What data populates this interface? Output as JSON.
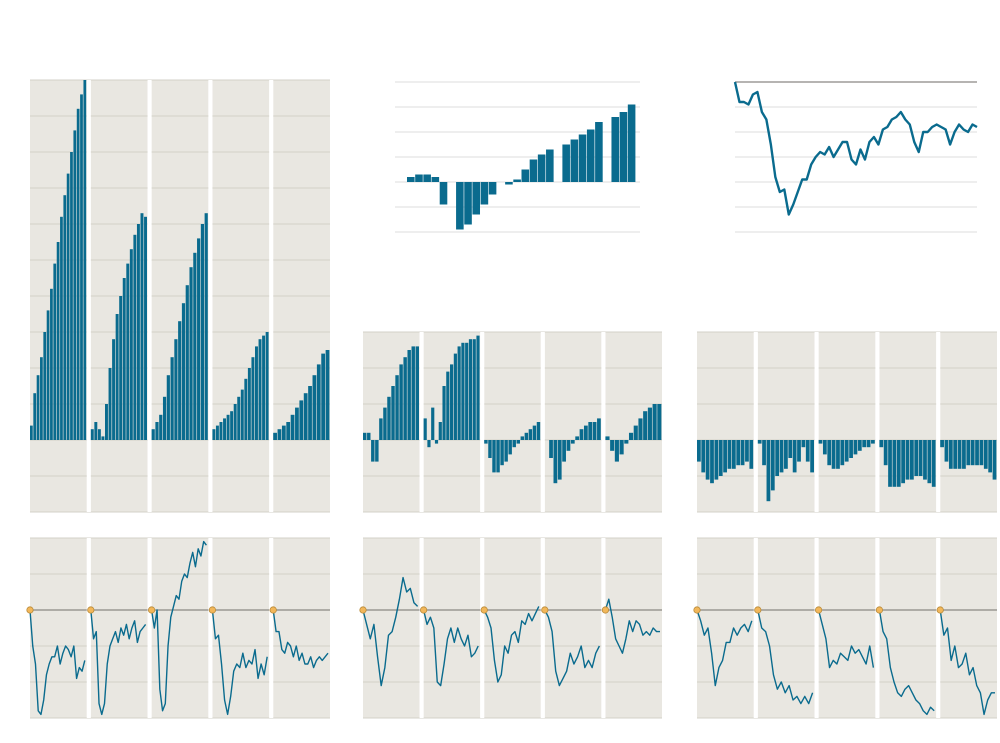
{
  "chart_data": [
    {
      "type": "grouped-bars",
      "color": "#0a6b8e",
      "ylim": [
        -2,
        10
      ],
      "yticks": [
        -2,
        -1,
        0,
        1,
        2,
        3,
        4,
        5,
        6,
        7,
        8,
        9,
        10
      ],
      "groups": [
        {
          "values": [
            0.4,
            1.3,
            1.8,
            2.3,
            3,
            3.6,
            4.2,
            4.9,
            5.5,
            6.2,
            6.8,
            7.4,
            8,
            8.6,
            9.2,
            9.6,
            10
          ]
        },
        {
          "values": [
            0.3,
            0.5,
            0.3,
            0.1,
            1.0,
            2.0,
            2.8,
            3.5,
            4.0,
            4.5,
            4.9,
            5.3,
            5.7,
            6.0,
            6.3,
            6.2
          ]
        },
        {
          "values": [
            0.3,
            0.5,
            0.7,
            1.2,
            1.8,
            2.3,
            2.8,
            3.3,
            3.8,
            4.3,
            4.8,
            5.2,
            5.6,
            6.0,
            6.3
          ]
        },
        {
          "values": [
            0.3,
            0.4,
            0.5,
            0.6,
            0.7,
            0.8,
            1.0,
            1.2,
            1.4,
            1.7,
            2.0,
            2.3,
            2.6,
            2.8,
            2.9,
            3.0
          ]
        },
        {
          "values": [
            0.2,
            0.3,
            0.4,
            0.5,
            0.7,
            0.9,
            1.1,
            1.3,
            1.5,
            1.8,
            2.1,
            2.4,
            2.5
          ]
        }
      ]
    },
    {
      "type": "bar",
      "color": "#0a6b8e",
      "ylim": [
        -2,
        4
      ],
      "yticks": [
        -2,
        -1,
        0,
        1,
        2,
        3,
        4
      ],
      "values": [
        0.2,
        0.3,
        0.3,
        0.2,
        -0.9,
        0,
        -1.9,
        -1.7,
        -1.3,
        -0.9,
        -0.5,
        0,
        -0.1,
        0.1,
        0.5,
        0.9,
        1.1,
        1.3,
        0,
        1.5,
        1.7,
        1.9,
        2.1,
        2.4,
        0,
        2.6,
        2.8,
        3.1
      ]
    },
    {
      "type": "line",
      "color": "#0a6b8e",
      "ylim": [
        -6,
        0
      ],
      "yticks": [
        -6,
        -5,
        -4,
        -3,
        -2,
        -1,
        0
      ],
      "values": [
        0,
        -0.8,
        -0.8,
        -0.9,
        -0.5,
        -0.4,
        -1.2,
        -1.5,
        -2.5,
        -3.8,
        -4.4,
        -4.3,
        -5.3,
        -4.9,
        -4.4,
        -3.9,
        -3.9,
        -3.3,
        -3.0,
        -2.8,
        -2.9,
        -2.6,
        -3.0,
        -2.7,
        -2.4,
        -2.4,
        -3.1,
        -3.3,
        -2.7,
        -3.1,
        -2.4,
        -2.2,
        -2.5,
        -1.9,
        -1.8,
        -1.5,
        -1.4,
        -1.2,
        -1.5,
        -1.7,
        -2.4,
        -2.8,
        -2.0,
        -2.0,
        -1.8,
        -1.7,
        -1.8,
        -1.9,
        -2.5,
        -2.0,
        -1.7,
        -1.9,
        -2.0,
        -1.7,
        -1.8
      ]
    },
    {
      "type": "grouped-bars",
      "color": "#0a6b8e",
      "ylim": [
        -2,
        3
      ],
      "yticks": [
        -2,
        -1,
        0,
        1,
        2,
        3
      ],
      "groups": [
        {
          "values": [
            0.2,
            0.2,
            -0.6,
            -0.6,
            0.6,
            0.9,
            1.2,
            1.5,
            1.8,
            2.1,
            2.3,
            2.5,
            2.6,
            2.6
          ]
        },
        {
          "values": [
            0.6,
            -0.2,
            0.9,
            -0.1,
            0.5,
            1.5,
            1.9,
            2.1,
            2.4,
            2.6,
            2.7,
            2.7,
            2.8,
            2.8,
            2.9
          ]
        },
        {
          "values": [
            -0.1,
            -0.5,
            -0.9,
            -0.9,
            -0.7,
            -0.6,
            -0.4,
            -0.2,
            -0.1,
            0.1,
            0.2,
            0.3,
            0.4,
            0.5
          ]
        },
        {
          "values": [
            0,
            -0.5,
            -1.2,
            -1.1,
            -0.6,
            -0.3,
            -0.1,
            0.1,
            0.3,
            0.4,
            0.5,
            0.5,
            0.6
          ]
        },
        {
          "values": [
            0.1,
            -0.3,
            -0.6,
            -0.4,
            -0.1,
            0.2,
            0.4,
            0.6,
            0.8,
            0.9,
            1.0,
            1.0
          ]
        }
      ]
    },
    {
      "type": "grouped-bars",
      "color": "#0a6b8e",
      "ylim": [
        -2,
        3
      ],
      "yticks": [
        -2,
        -1,
        0,
        1,
        2,
        3
      ],
      "groups": [
        {
          "values": [
            -0.6,
            -0.9,
            -1.1,
            -1.2,
            -1.1,
            -1.0,
            -0.9,
            -0.8,
            -0.8,
            -0.7,
            -0.7,
            -0.6,
            -0.8
          ]
        },
        {
          "values": [
            -0.1,
            -0.7,
            -1.7,
            -1.4,
            -1.0,
            -0.9,
            -0.8,
            -0.5,
            -0.9,
            -0.6,
            -0.2,
            -0.6,
            -0.9
          ]
        },
        {
          "values": [
            -0.1,
            -0.4,
            -0.7,
            -0.8,
            -0.8,
            -0.7,
            -0.6,
            -0.5,
            -0.4,
            -0.3,
            -0.2,
            -0.2,
            -0.1
          ]
        },
        {
          "values": [
            -0.2,
            -0.7,
            -1.3,
            -1.3,
            -1.3,
            -1.2,
            -1.1,
            -1.1,
            -1.0,
            -1.0,
            -1.1,
            -1.2,
            -1.3
          ]
        },
        {
          "values": [
            -0.2,
            -0.6,
            -0.8,
            -0.8,
            -0.8,
            -0.8,
            -0.7,
            -0.7,
            -0.7,
            -0.7,
            -0.8,
            -0.9,
            -1.1
          ]
        }
      ]
    },
    {
      "type": "grouped-lines",
      "color": "#0a6b8e",
      "ylim": [
        -3,
        2
      ],
      "yticks": [
        -3,
        -2,
        -1,
        0,
        1,
        2
      ],
      "groups": [
        {
          "values": [
            0,
            -1,
            -1.5,
            -2.8,
            -2.9,
            -2.5,
            -1.8,
            -1.5,
            -1.3,
            -1.3,
            -1,
            -1.5,
            -1.2,
            -1.0,
            -1.1,
            -1.3,
            -1.0,
            -1.9,
            -1.6,
            -1.7,
            -1.4
          ]
        },
        {
          "values": [
            0,
            -0.8,
            -0.6,
            -2.6,
            -2.9,
            -2.6,
            -1.5,
            -1.0,
            -0.8,
            -0.6,
            -0.9,
            -0.5,
            -0.7,
            -0.4,
            -0.8,
            -0.5,
            -0.3,
            -0.9,
            -0.6,
            -0.5,
            -0.4
          ]
        },
        {
          "values": [
            0,
            -0.5,
            0,
            -2.2,
            -2.8,
            -2.6,
            -1.0,
            -0.2,
            0.1,
            0.4,
            0.3,
            0.8,
            1.0,
            0.9,
            1.3,
            1.6,
            1.2,
            1.7,
            1.5,
            1.9,
            1.8
          ]
        },
        {
          "values": [
            0,
            -0.8,
            -0.7,
            -1.5,
            -2.5,
            -2.9,
            -2.4,
            -1.7,
            -1.5,
            -1.6,
            -1.2,
            -1.6,
            -1.4,
            -1.5,
            -1.1,
            -1.9,
            -1.5,
            -1.8,
            -1.3
          ]
        },
        {
          "values": [
            0,
            -0.6,
            -0.6,
            -1.1,
            -1.2,
            -0.9,
            -1.0,
            -1.3,
            -1.0,
            -1.4,
            -1.2,
            -1.5,
            -1.5,
            -1.3,
            -1.6,
            -1.4,
            -1.3,
            -1.4,
            -1.3,
            -1.2
          ]
        }
      ]
    },
    {
      "type": "grouped-lines",
      "color": "#0a6b8e",
      "ylim": [
        -3,
        2
      ],
      "yticks": [
        -3,
        -2,
        -1,
        0,
        1,
        2
      ],
      "groups": [
        {
          "values": [
            0,
            -0.4,
            -0.8,
            -0.4,
            -1.3,
            -2.1,
            -1.6,
            -0.7,
            -0.6,
            -0.2,
            0.3,
            0.9,
            0.5,
            0.6,
            0.2,
            0.1
          ]
        },
        {
          "values": [
            0,
            -0.4,
            -0.2,
            -0.5,
            -2.0,
            -2.1,
            -1.5,
            -0.8,
            -0.5,
            -0.9,
            -0.5,
            -0.8,
            -1.0,
            -0.7,
            -1.3,
            -1.2,
            -1.0
          ]
        },
        {
          "values": [
            0,
            -0.2,
            -0.5,
            -1.4,
            -2.0,
            -1.8,
            -1.0,
            -1.2,
            -0.7,
            -0.6,
            -0.9,
            -0.3,
            -0.4,
            -0.1,
            -0.3,
            -0.1,
            0.1
          ]
        },
        {
          "values": [
            0,
            -0.2,
            -0.6,
            -1.7,
            -2.1,
            -1.9,
            -1.7,
            -1.2,
            -1.5,
            -1.3,
            -1.0,
            -1.6,
            -1.4,
            -1.6,
            -1.2,
            -1.0
          ]
        },
        {
          "values": [
            0,
            0.3,
            -0.2,
            -0.8,
            -1.0,
            -1.2,
            -0.8,
            -0.3,
            -0.6,
            -0.3,
            -0.4,
            -0.7,
            -0.6,
            -0.7,
            -0.5,
            -0.6,
            -0.6
          ]
        }
      ]
    },
    {
      "type": "grouped-lines",
      "color": "#0a6b8e",
      "ylim": [
        -3,
        2
      ],
      "yticks": [
        -3,
        -2,
        -1,
        0,
        1,
        2
      ],
      "groups": [
        {
          "values": [
            0,
            -0.3,
            -0.7,
            -0.5,
            -1.2,
            -2.1,
            -1.6,
            -1.4,
            -0.9,
            -0.9,
            -0.5,
            -0.7,
            -0.5,
            -0.4,
            -0.6,
            -0.3
          ]
        },
        {
          "values": [
            0,
            -0.5,
            -0.6,
            -1.0,
            -1.8,
            -2.2,
            -2.0,
            -2.3,
            -2.1,
            -2.5,
            -2.4,
            -2.6,
            -2.4,
            -2.6,
            -2.3
          ]
        },
        {
          "values": [
            0,
            -0.4,
            -0.8,
            -1.6,
            -1.4,
            -1.5,
            -1.2,
            -1.3,
            -1.4,
            -1.0,
            -1.2,
            -1.1,
            -1.3,
            -1.5,
            -1.0,
            -1.6
          ]
        },
        {
          "values": [
            0,
            -0.6,
            -0.8,
            -1.6,
            -2.0,
            -2.3,
            -2.4,
            -2.2,
            -2.1,
            -2.3,
            -2.5,
            -2.6,
            -2.8,
            -2.9,
            -2.7,
            -2.8
          ]
        },
        {
          "values": [
            0,
            -0.7,
            -0.5,
            -1.4,
            -1.0,
            -1.6,
            -1.5,
            -1.2,
            -1.8,
            -1.6,
            -2.1,
            -2.3,
            -2.9,
            -2.5,
            -2.3,
            -2.3
          ]
        }
      ]
    }
  ]
}
